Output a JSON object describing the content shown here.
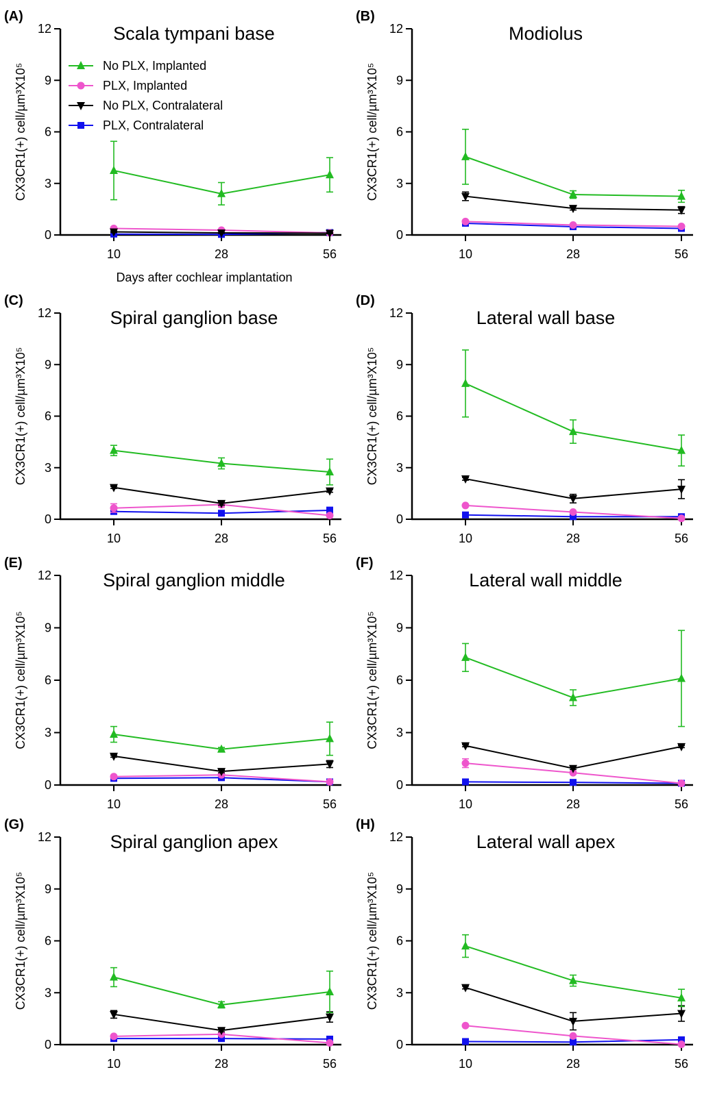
{
  "series_styles": [
    {
      "name": "No PLX, Implanted",
      "color": "#22bb22",
      "marker": "triangle-up"
    },
    {
      "name": "PLX, Implanted",
      "color": "#ee55cc",
      "marker": "circle"
    },
    {
      "name": "No PLX, Contralateral",
      "color": "#000000",
      "marker": "triangle-down"
    },
    {
      "name": "PLX, Contralateral",
      "color": "#1111ee",
      "marker": "square"
    }
  ],
  "chart_data": [
    {
      "type": "line",
      "panel": "(A)",
      "title": "Scala tympani base",
      "x": [
        10,
        28,
        56
      ],
      "ylabel": "CX3CR1(+) cell/µm³X10⁵",
      "xlabel": "Days after cochlear implantation",
      "ylim": [
        0,
        12
      ],
      "yticks": [
        0,
        3,
        6,
        9,
        12
      ],
      "legend": "top-left",
      "series": [
        {
          "name": "No PLX, Implanted",
          "values": [
            3.75,
            2.4,
            3.5
          ],
          "errors": [
            1.7,
            0.65,
            1.0
          ]
        },
        {
          "name": "PLX, Implanted",
          "values": [
            0.38,
            0.28,
            0.12
          ],
          "errors": [
            0.08,
            0.06,
            0.04
          ]
        },
        {
          "name": "No PLX, Contralateral",
          "values": [
            0.18,
            0.12,
            0.1
          ],
          "errors": [
            0.04,
            0.03,
            0.03
          ]
        },
        {
          "name": "PLX, Contralateral",
          "values": [
            0.05,
            0.03,
            0.14
          ],
          "errors": [
            0.02,
            0.02,
            0.04
          ]
        }
      ]
    },
    {
      "type": "line",
      "panel": "(B)",
      "title": "Modiolus",
      "x": [
        10,
        28,
        56
      ],
      "ylabel": "CX3CR1(+) cell/µm³X10⁵",
      "xlabel": "",
      "ylim": [
        0,
        12
      ],
      "yticks": [
        0,
        3,
        6,
        9,
        12
      ],
      "series": [
        {
          "name": "No PLX, Implanted",
          "values": [
            4.55,
            2.35,
            2.25
          ],
          "errors": [
            1.6,
            0.22,
            0.35
          ]
        },
        {
          "name": "PLX, Implanted",
          "values": [
            0.78,
            0.58,
            0.5
          ],
          "errors": [
            0.08,
            0.06,
            0.06
          ]
        },
        {
          "name": "No PLX, Contralateral",
          "values": [
            2.25,
            1.55,
            1.45
          ],
          "errors": [
            0.25,
            0.1,
            0.2
          ]
        },
        {
          "name": "PLX, Contralateral",
          "values": [
            0.68,
            0.48,
            0.38
          ],
          "errors": [
            0.06,
            0.05,
            0.06
          ]
        }
      ]
    },
    {
      "type": "line",
      "panel": "(C)",
      "title": "Spiral ganglion base",
      "x": [
        10,
        28,
        56
      ],
      "ylabel": "CX3CR1(+) cell/µm³X10⁵",
      "xlabel": "",
      "ylim": [
        0,
        12
      ],
      "yticks": [
        0,
        3,
        6,
        9,
        12
      ],
      "series": [
        {
          "name": "No PLX, Implanted",
          "values": [
            4.0,
            3.25,
            2.75
          ],
          "errors": [
            0.3,
            0.32,
            0.75
          ]
        },
        {
          "name": "PLX, Implanted",
          "values": [
            0.65,
            0.85,
            0.22
          ],
          "errors": [
            0.25,
            0.15,
            0.06
          ]
        },
        {
          "name": "No PLX, Contralateral",
          "values": [
            1.85,
            0.92,
            1.65
          ],
          "errors": [
            0.06,
            0.1,
            0.08
          ]
        },
        {
          "name": "PLX, Contralateral",
          "values": [
            0.45,
            0.35,
            0.52
          ],
          "errors": [
            0.06,
            0.05,
            0.18
          ]
        }
      ]
    },
    {
      "type": "line",
      "panel": "(D)",
      "title": "Lateral wall base",
      "x": [
        10,
        28,
        56
      ],
      "ylabel": "CX3CR1(+) cell/µm³X10⁵",
      "xlabel": "",
      "ylim": [
        0,
        12
      ],
      "yticks": [
        0,
        3,
        6,
        9,
        12
      ],
      "series": [
        {
          "name": "No PLX, Implanted",
          "values": [
            7.9,
            5.1,
            4.0
          ],
          "errors": [
            1.95,
            0.68,
            0.9
          ]
        },
        {
          "name": "PLX, Implanted",
          "values": [
            0.8,
            0.42,
            0.05
          ],
          "errors": [
            0.07,
            0.06,
            0.03
          ]
        },
        {
          "name": "No PLX, Contralateral",
          "values": [
            2.35,
            1.2,
            1.75
          ],
          "errors": [
            0.08,
            0.25,
            0.55
          ]
        },
        {
          "name": "PLX, Contralateral",
          "values": [
            0.25,
            0.15,
            0.15
          ],
          "errors": [
            0.04,
            0.03,
            0.03
          ]
        }
      ]
    },
    {
      "type": "line",
      "panel": "(E)",
      "title": "Spiral ganglion middle",
      "x": [
        10,
        28,
        56
      ],
      "ylabel": "CX3CR1(+) cell/µm³X10⁵",
      "xlabel": "",
      "ylim": [
        0,
        12
      ],
      "yticks": [
        0,
        3,
        6,
        9,
        12
      ],
      "series": [
        {
          "name": "No PLX, Implanted",
          "values": [
            2.9,
            2.05,
            2.65
          ],
          "errors": [
            0.45,
            0.1,
            0.95
          ]
        },
        {
          "name": "PLX, Implanted",
          "values": [
            0.48,
            0.58,
            0.18
          ],
          "errors": [
            0.08,
            0.07,
            0.04
          ]
        },
        {
          "name": "No PLX, Contralateral",
          "values": [
            1.65,
            0.78,
            1.2
          ],
          "errors": [
            0.06,
            0.08,
            0.2
          ]
        },
        {
          "name": "PLX, Contralateral",
          "values": [
            0.38,
            0.42,
            0.18
          ],
          "errors": [
            0.06,
            0.05,
            0.04
          ]
        }
      ]
    },
    {
      "type": "line",
      "panel": "(F)",
      "title": "Lateral wall middle",
      "x": [
        10,
        28,
        56
      ],
      "ylabel": "CX3CR1(+) cell/µm³X10⁵",
      "xlabel": "",
      "ylim": [
        0,
        12
      ],
      "yticks": [
        0,
        3,
        6,
        9,
        12
      ],
      "series": [
        {
          "name": "No PLX, Implanted",
          "values": [
            7.3,
            5.0,
            6.1
          ],
          "errors": [
            0.8,
            0.45,
            2.75
          ]
        },
        {
          "name": "PLX, Implanted",
          "values": [
            1.25,
            0.7,
            0.1
          ],
          "errors": [
            0.25,
            0.08,
            0.03
          ]
        },
        {
          "name": "No PLX, Contralateral",
          "values": [
            2.25,
            0.95,
            2.2
          ],
          "errors": [
            0.06,
            0.06,
            0.06
          ]
        },
        {
          "name": "PLX, Contralateral",
          "values": [
            0.18,
            0.15,
            0.1
          ],
          "errors": [
            0.04,
            0.03,
            0.03
          ]
        }
      ]
    },
    {
      "type": "line",
      "panel": "(G)",
      "title": "Spiral ganglion apex",
      "x": [
        10,
        28,
        56
      ],
      "ylabel": "CX3CR1(+) cell/µm³X10⁵",
      "xlabel": "",
      "ylim": [
        0,
        12
      ],
      "yticks": [
        0,
        3,
        6,
        9,
        12
      ],
      "series": [
        {
          "name": "No PLX, Implanted",
          "values": [
            3.9,
            2.3,
            3.05
          ],
          "errors": [
            0.55,
            0.18,
            1.2
          ]
        },
        {
          "name": "PLX, Implanted",
          "values": [
            0.48,
            0.6,
            0.1
          ],
          "errors": [
            0.06,
            0.06,
            0.03
          ]
        },
        {
          "name": "No PLX, Contralateral",
          "values": [
            1.75,
            0.82,
            1.6
          ],
          "errors": [
            0.22,
            0.08,
            0.3
          ]
        },
        {
          "name": "PLX, Contralateral",
          "values": [
            0.35,
            0.35,
            0.32
          ],
          "errors": [
            0.05,
            0.04,
            0.05
          ]
        }
      ]
    },
    {
      "type": "line",
      "panel": "(H)",
      "title": "Lateral wall apex",
      "x": [
        10,
        28,
        56
      ],
      "ylabel": "CX3CR1(+) cell/µm³X10⁵",
      "xlabel": "",
      "ylim": [
        0,
        12
      ],
      "yticks": [
        0,
        3,
        6,
        9,
        12
      ],
      "series": [
        {
          "name": "No PLX, Implanted",
          "values": [
            5.7,
            3.7,
            2.7
          ],
          "errors": [
            0.65,
            0.32,
            0.5
          ]
        },
        {
          "name": "PLX, Implanted",
          "values": [
            1.1,
            0.5,
            0.02
          ],
          "errors": [
            0.06,
            0.06,
            0.02
          ]
        },
        {
          "name": "No PLX, Contralateral",
          "values": [
            3.3,
            1.35,
            1.8
          ],
          "errors": [
            0.08,
            0.5,
            0.45
          ]
        },
        {
          "name": "PLX, Contralateral",
          "values": [
            0.18,
            0.15,
            0.28
          ],
          "errors": [
            0.04,
            0.03,
            0.04
          ]
        }
      ]
    }
  ]
}
